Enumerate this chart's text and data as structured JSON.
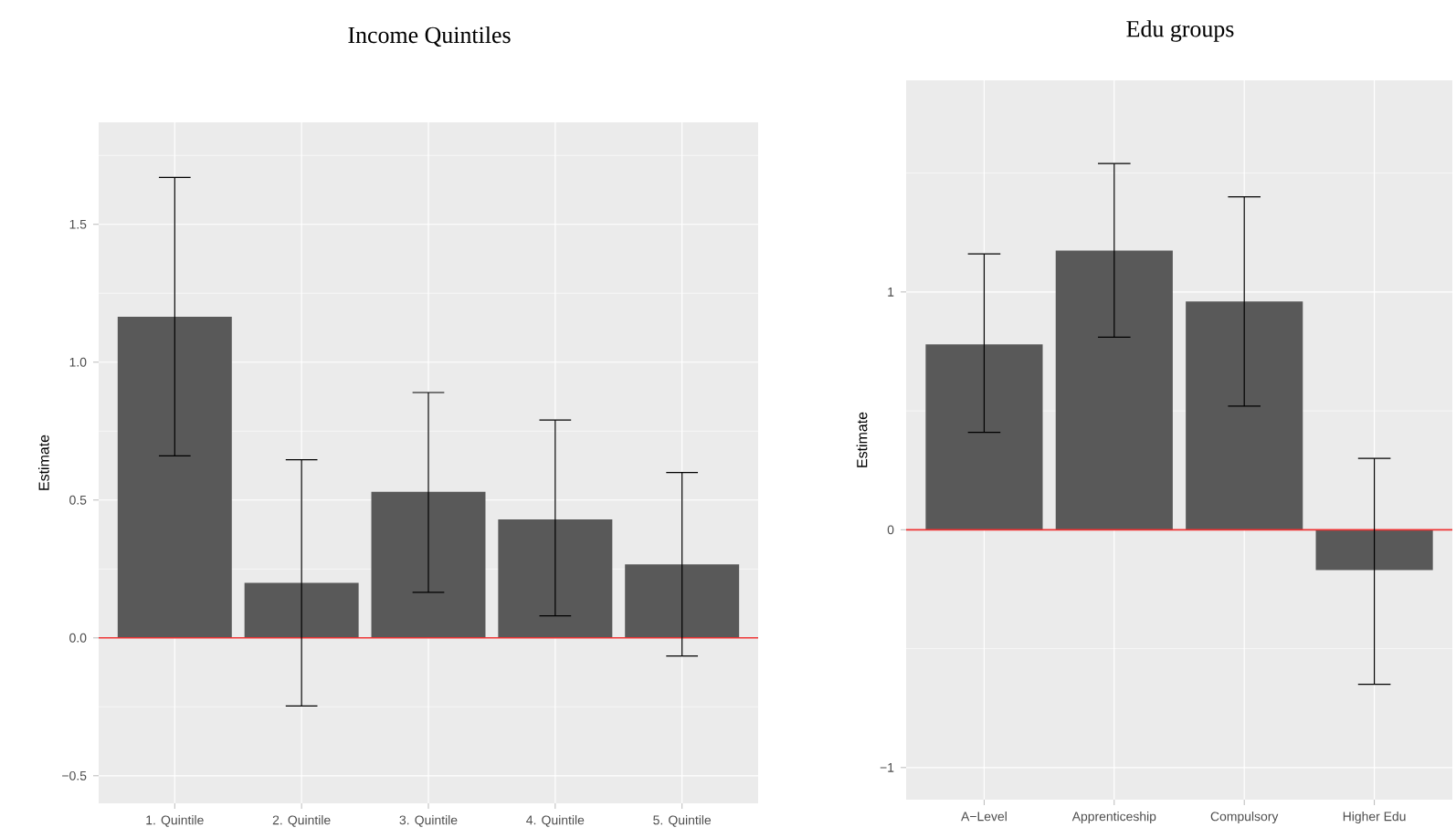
{
  "chart_data": [
    {
      "type": "bar",
      "title": "Income Quintiles",
      "ylabel": "Estimate",
      "categories": [
        "1. Quintile",
        "2. Quintile",
        "3. Quintile",
        "4. Quintile",
        "5. Quintile"
      ],
      "values": [
        1.165,
        0.2,
        0.53,
        0.43,
        0.267
      ],
      "errors": [
        [
          0.66,
          1.67
        ],
        [
          -0.247,
          0.646
        ],
        [
          0.165,
          0.89
        ],
        [
          0.08,
          0.79
        ],
        [
          -0.066,
          0.6
        ]
      ],
      "color": "#595959",
      "ylim": [
        -0.6,
        1.87
      ],
      "yticks": [
        {
          "value": -0.5,
          "label": "−0.5"
        },
        {
          "value": -0.25,
          "label": null
        },
        {
          "value": 0,
          "label": "0.0"
        },
        {
          "value": 0.25,
          "label": null
        },
        0.5,
        {
          "value": 0.75,
          "label": null
        },
        {
          "value": 1,
          "label": "1.0"
        },
        {
          "value": 1.25,
          "label": null
        },
        1.5,
        {
          "value": 1.75,
          "label": null
        }
      ],
      "grid": true,
      "ref_lines": [
        {
          "axis": "y",
          "value": 0,
          "color": "#ee3333"
        }
      ]
    },
    {
      "type": "bar",
      "title": "Edu groups",
      "ylabel": "Estimate",
      "categories": [
        "A−Level",
        "Apprenticeship",
        "Compulsory",
        "Higher Edu"
      ],
      "values": [
        0.78,
        1.174,
        0.96,
        -0.17
      ],
      "errors": [
        [
          0.41,
          1.16
        ],
        [
          0.81,
          1.54
        ],
        [
          0.52,
          1.4
        ],
        [
          -0.65,
          0.3
        ]
      ],
      "color": "#595959",
      "ylim": [
        -1.135,
        1.89
      ],
      "yticks": [
        {
          "value": -1,
          "label": "−1"
        },
        {
          "value": -0.5,
          "label": null
        },
        0,
        {
          "value": 0.5,
          "label": null
        },
        1,
        {
          "value": 1.5,
          "label": null
        }
      ],
      "grid": true,
      "ref_lines": [
        {
          "axis": "y",
          "value": 0,
          "color": "#ee3333"
        }
      ]
    }
  ]
}
